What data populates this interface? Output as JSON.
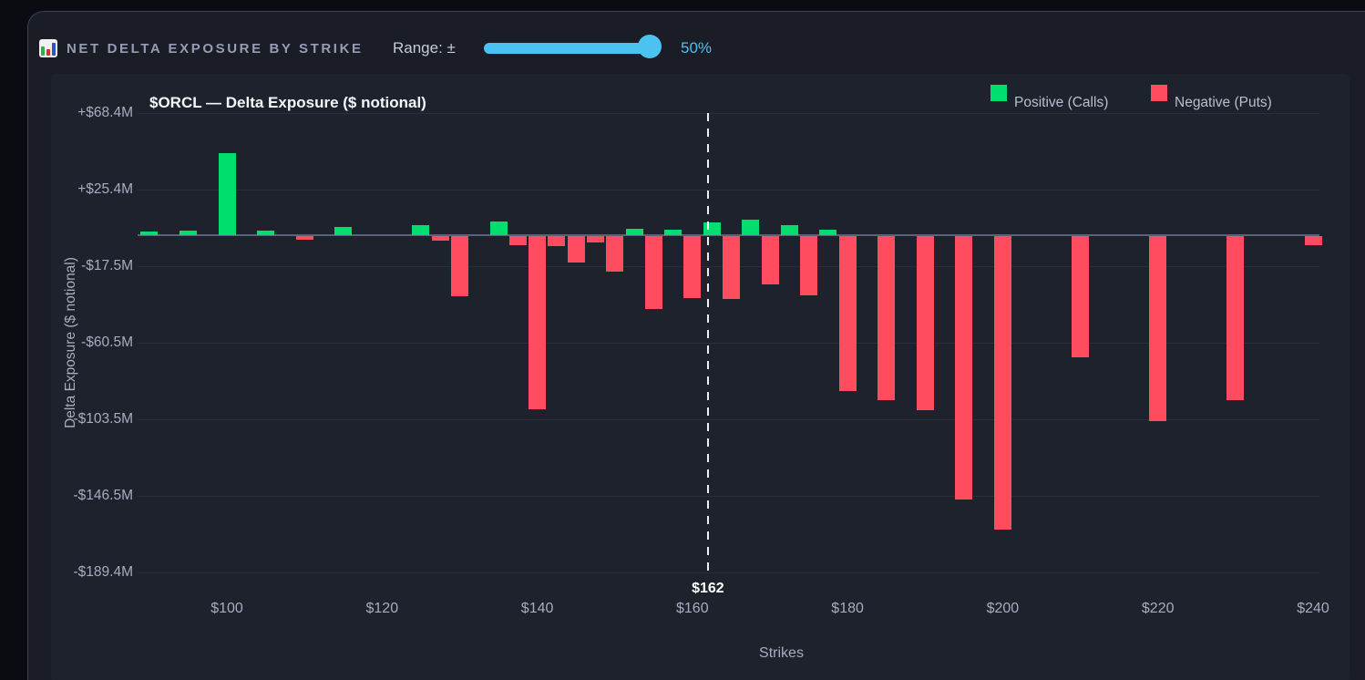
{
  "header": {
    "icon": "bar-chart",
    "title": "NET DELTA EXPOSURE BY STRIKE",
    "range_label": "Range: ±",
    "range_value": "50%",
    "slider_fill_percent": 100
  },
  "chart_data": {
    "type": "bar",
    "title": "$ORCL — Delta Exposure ($ notional)",
    "xlabel": "Strikes",
    "ylabel": "Delta Exposure ($ notional)",
    "unit": "millions of $",
    "grid": true,
    "legend_position": "top-right",
    "legend": [
      {
        "label": "Positive (Calls)",
        "color": "#00df6e"
      },
      {
        "label": "Negative (Puts)",
        "color": "#ff4d5f"
      }
    ],
    "positive_color": "#00df6e",
    "negative_color": "#ff4d5f",
    "ylim": [
      -189.4,
      68.4
    ],
    "y_ticks": [
      {
        "value": 68.4,
        "label": "+$68.4M"
      },
      {
        "value": 25.4,
        "label": "+$25.4M"
      },
      {
        "value": -17.5,
        "label": "-$17.5M"
      },
      {
        "value": -60.5,
        "label": "-$60.5M"
      },
      {
        "value": -103.5,
        "label": "-$103.5M"
      },
      {
        "value": -146.5,
        "label": "-$146.5M"
      },
      {
        "value": -189.4,
        "label": "-$189.4M"
      }
    ],
    "x_ticks": [
      {
        "value": 100,
        "label": "$100"
      },
      {
        "value": 120,
        "label": "$120"
      },
      {
        "value": 140,
        "label": "$140"
      },
      {
        "value": 160,
        "label": "$160"
      },
      {
        "value": 180,
        "label": "$180"
      },
      {
        "value": 200,
        "label": "$200"
      },
      {
        "value": 220,
        "label": "$220"
      },
      {
        "value": 240,
        "label": "$240"
      }
    ],
    "spot": {
      "strike": 162,
      "label": "$162"
    },
    "bars": [
      {
        "strike": 90,
        "value_m": 2
      },
      {
        "strike": 95,
        "value_m": 2.5
      },
      {
        "strike": 100,
        "value_m": 46
      },
      {
        "strike": 105,
        "value_m": 2.5
      },
      {
        "strike": 110,
        "value_m": -2
      },
      {
        "strike": 115,
        "value_m": 4.5
      },
      {
        "strike": 125,
        "value_m": 5.5
      },
      {
        "strike": 127.5,
        "value_m": -2.5
      },
      {
        "strike": 130,
        "value_m": -34
      },
      {
        "strike": 135,
        "value_m": 7.5
      },
      {
        "strike": 137.5,
        "value_m": -5
      },
      {
        "strike": 140,
        "value_m": -97
      },
      {
        "strike": 142.5,
        "value_m": -5.5
      },
      {
        "strike": 145,
        "value_m": -15
      },
      {
        "strike": 147.5,
        "value_m": -3.5
      },
      {
        "strike": 150,
        "value_m": -20
      },
      {
        "strike": 152.5,
        "value_m": 3.5
      },
      {
        "strike": 155,
        "value_m": -41
      },
      {
        "strike": 157.5,
        "value_m": 3
      },
      {
        "strike": 160,
        "value_m": -35
      },
      {
        "strike": 162.5,
        "value_m": 7
      },
      {
        "strike": 165,
        "value_m": -35.5
      },
      {
        "strike": 167.5,
        "value_m": 8.5
      },
      {
        "strike": 170,
        "value_m": -27
      },
      {
        "strike": 172.5,
        "value_m": 5.5
      },
      {
        "strike": 175,
        "value_m": -33
      },
      {
        "strike": 177.5,
        "value_m": 3
      },
      {
        "strike": 180,
        "value_m": -87
      },
      {
        "strike": 185,
        "value_m": -92
      },
      {
        "strike": 190,
        "value_m": -98
      },
      {
        "strike": 195,
        "value_m": -148
      },
      {
        "strike": 200,
        "value_m": -165
      },
      {
        "strike": 210,
        "value_m": -68
      },
      {
        "strike": 220,
        "value_m": -104
      },
      {
        "strike": 230,
        "value_m": -92
      },
      {
        "strike": 240,
        "value_m": -5
      }
    ]
  }
}
